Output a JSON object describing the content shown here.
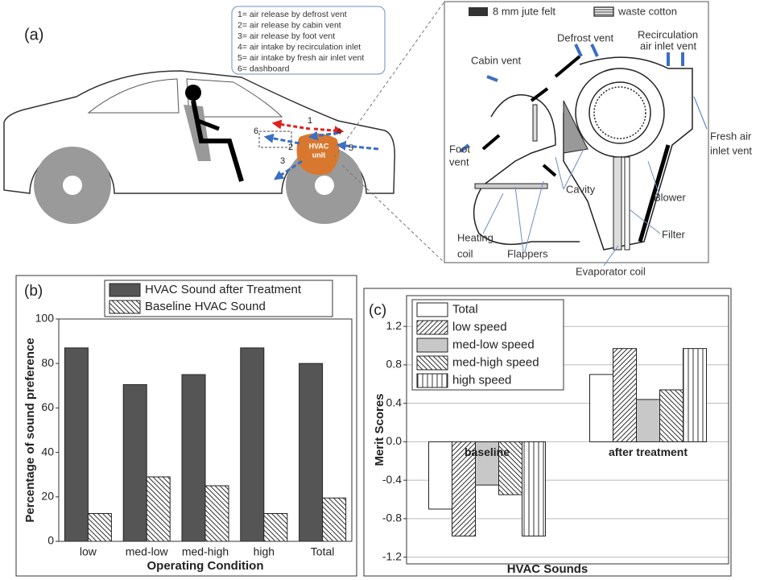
{
  "panel_labels": [
    "(a)",
    "(b)",
    "(c)"
  ],
  "diagram": {
    "legend": [
      "1= air release by defrost vent",
      "2= air release by cabin vent",
      "3= air release by foot vent",
      "4= air intake by recirculation inlet",
      "5= air intake by fresh air inlet vent",
      "6= dashboard"
    ],
    "vent_numbers": [
      "1",
      "2",
      "3",
      "4",
      "5",
      "6"
    ],
    "hvac_unit": [
      "HVAC",
      "unit"
    ],
    "materials": [
      "8 mm jute felt",
      "waste cotton"
    ],
    "labels": {
      "defrost": "Defrost vent",
      "recirculation": [
        "Recirculation",
        "air inlet vent"
      ],
      "cabin": "Cabin vent",
      "fresh": [
        "Fresh air",
        "inlet vent"
      ],
      "foot": [
        "Foot",
        "vent"
      ],
      "cavity": "Cavity",
      "blower": "Blower",
      "filter": "Filter",
      "heating": [
        "Heating",
        "coil"
      ],
      "flappers": "Flappers",
      "evaporator": "Evaporator coil"
    }
  },
  "chart_data": [
    {
      "type": "bar",
      "x_label": "Operating Condition",
      "y_label": "Percentage of sound preference",
      "categories": [
        "low",
        "med-low",
        "med-high",
        "high",
        "Total"
      ],
      "series": [
        {
          "name": "HVAC Sound after Treatment",
          "color": "#555555",
          "hatch": null,
          "values": [
            87,
            70.5,
            75,
            87,
            80
          ]
        },
        {
          "name": "Baseline HVAC Sound",
          "color": "#ffffff",
          "hatch": "back",
          "values": [
            12.5,
            29,
            25,
            12.5,
            19.5
          ]
        }
      ],
      "ylim": [
        0,
        100
      ],
      "yticks": [
        0,
        20,
        40,
        60,
        80,
        100
      ],
      "grid": false,
      "legend": "top"
    },
    {
      "type": "bar",
      "x_label": "HVAC Sounds",
      "y_label": "Merit Scores",
      "categories": [
        "baseline",
        "after treatment"
      ],
      "series": [
        {
          "name": "Total",
          "color": "#ffffff",
          "hatch": null,
          "values": [
            -0.7,
            0.7
          ]
        },
        {
          "name": "low speed",
          "color": "#ffffff",
          "hatch": "fwd",
          "values": [
            -0.98,
            0.97
          ]
        },
        {
          "name": "med-low speed",
          "color": "#c8c8c8",
          "hatch": null,
          "values": [
            -0.45,
            0.44
          ]
        },
        {
          "name": "med-high speed",
          "color": "#ffffff",
          "hatch": "back",
          "values": [
            -0.55,
            0.54
          ]
        },
        {
          "name": "high speed",
          "color": "#ffffff",
          "hatch": "vert",
          "values": [
            -0.98,
            0.97
          ]
        }
      ],
      "ylim": [
        -1.27,
        1.52
      ],
      "yticks": [
        -1.2,
        -0.8,
        -0.4,
        {
          "value": 0,
          "label": "0.0"
        },
        0.4,
        0.8,
        1.2
      ],
      "grid": true,
      "legend": "upper left"
    }
  ]
}
